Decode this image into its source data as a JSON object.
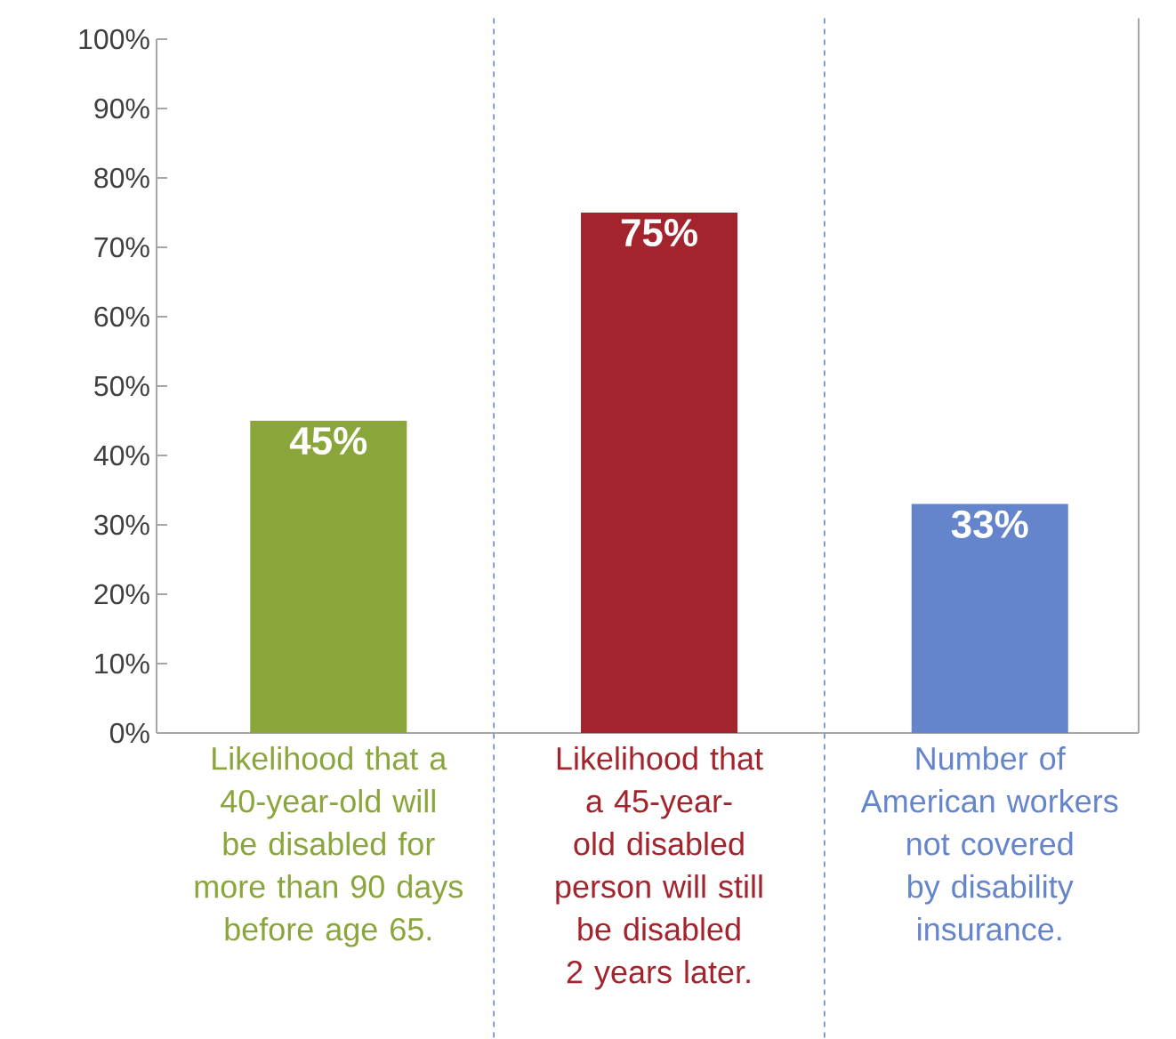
{
  "chart_data": {
    "type": "bar",
    "categories": [
      "Likelihood that a 40-year-old will be disabled for more than 90 days before age 65.",
      "Likelihood that a 45-year-old disabled person will still be disabled 2 years later.",
      "Number of American workers not covered by disability insurance."
    ],
    "values": [
      45,
      75,
      33
    ],
    "colors": [
      "#8aa63a",
      "#a3242c",
      "#6484cc"
    ],
    "value_labels": [
      "45%",
      "75%",
      "33%"
    ],
    "ylim": [
      0,
      100
    ],
    "yticks": [
      {
        "value": 0,
        "label": "0%"
      },
      {
        "value": 10,
        "label": "10%"
      },
      {
        "value": 20,
        "label": "20%"
      },
      {
        "value": 30,
        "label": "30%"
      },
      {
        "value": 40,
        "label": "40%"
      },
      {
        "value": 50,
        "label": "50%"
      },
      {
        "value": 60,
        "label": "60%"
      },
      {
        "value": 70,
        "label": "70%"
      },
      {
        "value": 80,
        "label": "80%"
      },
      {
        "value": 90,
        "label": "90%"
      },
      {
        "value": 100,
        "label": "100%"
      }
    ],
    "grid": false
  }
}
